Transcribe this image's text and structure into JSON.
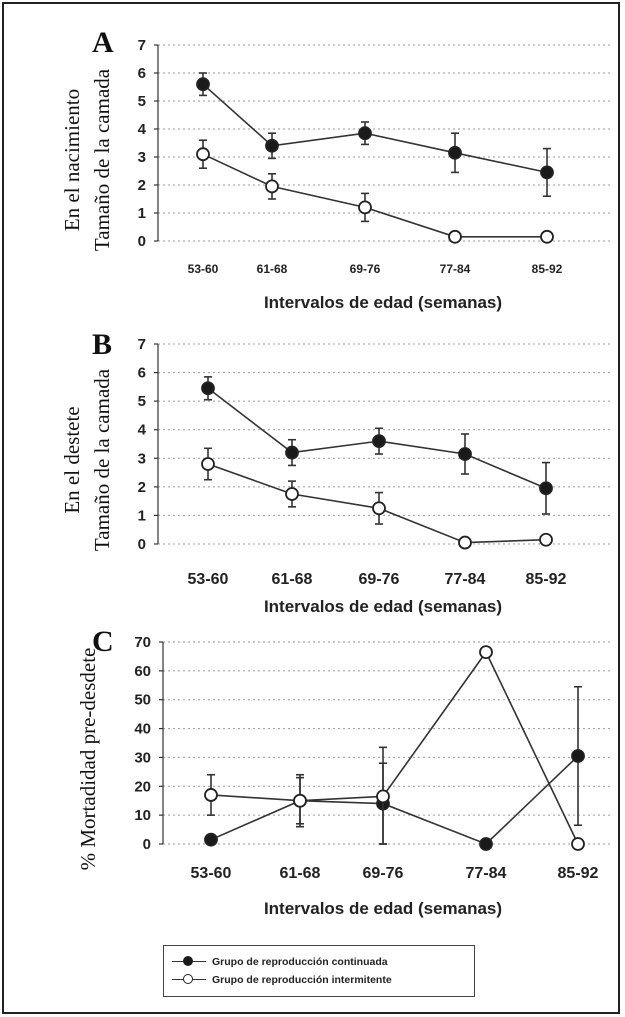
{
  "chart_data": [
    {
      "type": "line",
      "panel": "A",
      "ylabel_lines": [
        "En el nacimiento",
        "Tamaño de la camada"
      ],
      "xlabel": "Intervalos de edad (semanas)",
      "categories": [
        "53-60",
        "61-68",
        "69-76",
        "77-84",
        "85-92"
      ],
      "yticks": [
        0,
        1,
        2,
        3,
        4,
        5,
        6,
        7
      ],
      "ylim": [
        0,
        7
      ],
      "grid": true,
      "series": [
        {
          "key": "continua",
          "marker": "filled",
          "values": [
            5.6,
            3.4,
            3.85,
            3.15,
            2.45
          ],
          "err": [
            0.4,
            0.45,
            0.4,
            0.7,
            0.85
          ]
        },
        {
          "key": "intermitente",
          "marker": "open",
          "values": [
            3.1,
            1.95,
            1.2,
            0.15,
            0.15
          ],
          "err": [
            0.5,
            0.45,
            0.5,
            0.1,
            0.05
          ]
        }
      ]
    },
    {
      "type": "line",
      "panel": "B",
      "ylabel_lines": [
        "En el destete",
        "Tamaño de la camada"
      ],
      "xlabel": "Intervalos de edad (semanas)",
      "categories": [
        "53-60",
        "61-68",
        "69-76",
        "77-84",
        "85-92"
      ],
      "yticks": [
        0,
        1,
        2,
        3,
        4,
        5,
        6,
        7
      ],
      "ylim": [
        0,
        7
      ],
      "grid": true,
      "series": [
        {
          "key": "continua",
          "marker": "filled",
          "values": [
            5.45,
            3.2,
            3.6,
            3.15,
            1.95
          ],
          "err": [
            0.4,
            0.45,
            0.45,
            0.7,
            0.9
          ]
        },
        {
          "key": "intermitente",
          "marker": "open",
          "values": [
            2.8,
            1.75,
            1.25,
            0.05,
            0.15
          ],
          "err": [
            0.55,
            0.45,
            0.55,
            0.05,
            0.1
          ]
        }
      ]
    },
    {
      "type": "line",
      "panel": "C",
      "ylabel_lines": [
        "% Mortadidad pre-desdete"
      ],
      "xlabel": "Intervalos de edad (semanas)",
      "categories": [
        "53-60",
        "61-68",
        "69-76",
        "77-84",
        "85-92"
      ],
      "yticks": [
        0,
        10,
        20,
        30,
        40,
        50,
        60,
        70
      ],
      "ylim": [
        0,
        70
      ],
      "grid": true,
      "series": [
        {
          "key": "continua",
          "marker": "filled",
          "values": [
            1.5,
            15,
            14,
            0,
            30.5
          ],
          "err": [
            0,
            9,
            14,
            0,
            24
          ]
        },
        {
          "key": "intermitente",
          "marker": "open",
          "values": [
            17,
            15,
            16.5,
            66.5,
            0
          ],
          "err": [
            7,
            8,
            17,
            0,
            0
          ]
        }
      ]
    }
  ],
  "legend": {
    "entries": [
      {
        "marker": "filled",
        "label": "Grupo de reproducción continuada"
      },
      {
        "marker": "open",
        "label": "Grupo de reproducción intermitente"
      }
    ]
  },
  "colors": {
    "ink": "#222222",
    "open_fill": "#ffffff",
    "filled": "#1a1a1a",
    "grid": "#9a9a9a"
  }
}
